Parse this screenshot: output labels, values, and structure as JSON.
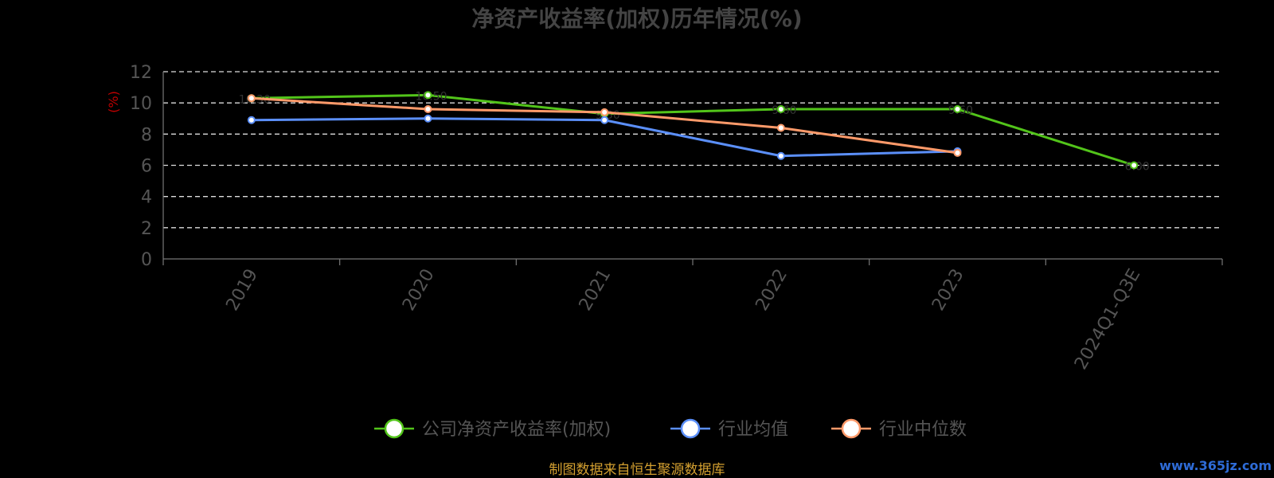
{
  "chart_data": {
    "type": "line",
    "title": "净资产收益率(加权)历年情况(%)",
    "ylabel": "(%)",
    "ylim": [
      0,
      12
    ],
    "yticks": [
      0,
      2,
      4,
      6,
      8,
      10,
      12
    ],
    "grid": true,
    "legend_position": "bottom",
    "categories": [
      "2019",
      "2020",
      "2021",
      "2022",
      "2023",
      "2024Q1-Q3E"
    ],
    "series": [
      {
        "name": "公司净资产收益率(加权)",
        "color": "#52c41a",
        "values": [
          10.3,
          10.5,
          9.3,
          9.6,
          9.6,
          6.0
        ]
      },
      {
        "name": "行业均值",
        "color": "#5b8ff9",
        "values": [
          8.9,
          9.0,
          8.9,
          6.6,
          6.9,
          null
        ]
      },
      {
        "name": "行业中位数",
        "color": "#ff9a6a",
        "values": [
          10.3,
          9.6,
          9.4,
          8.4,
          6.8,
          null
        ]
      }
    ],
    "source_note": "制图数据来自恒生聚源数据库",
    "watermark": "www.365jz.com"
  }
}
